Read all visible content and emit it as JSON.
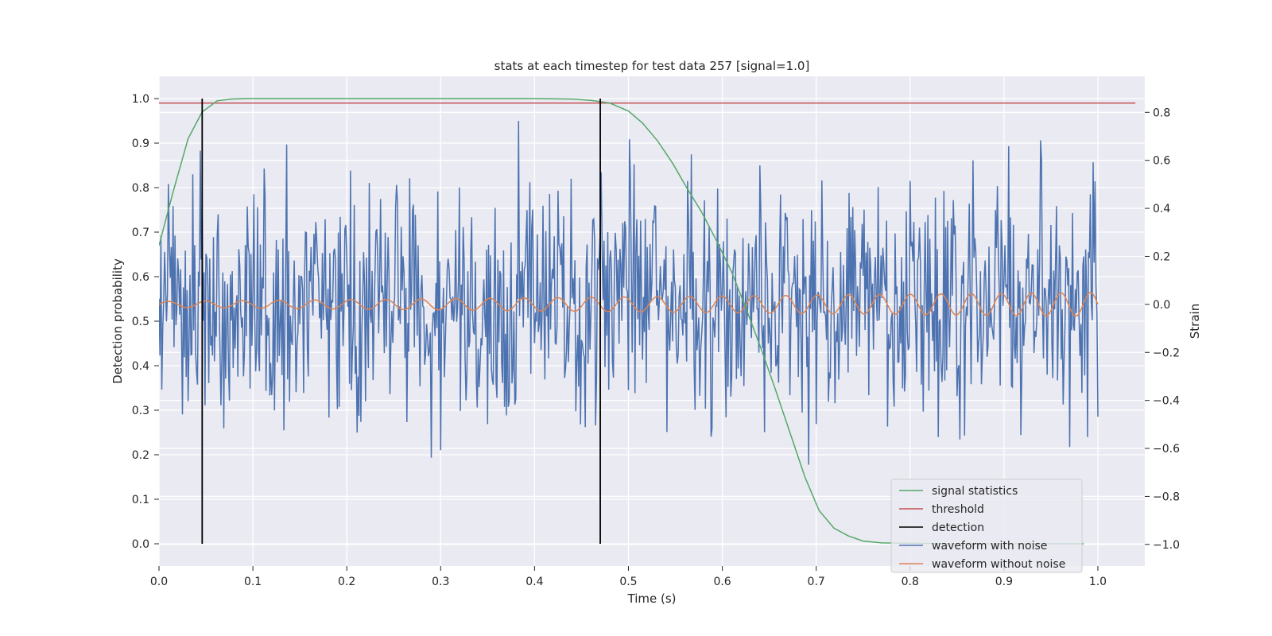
{
  "chart_data": {
    "type": "line",
    "title": "stats at each timestep for test data 257 [signal=1.0]",
    "xlabel": "Time (s)",
    "ylabel_left": "Detection probability",
    "ylabel_right": "Strain",
    "xlim": [
      0.0,
      1.05
    ],
    "ylim_left": [
      -0.05,
      1.05
    ],
    "ylim_right": [
      -1.09,
      0.95
    ],
    "x_ticks": [
      "0.0",
      "0.1",
      "0.2",
      "0.3",
      "0.4",
      "0.5",
      "0.6",
      "0.7",
      "0.8",
      "0.9",
      "1.0"
    ],
    "y_left_ticks": [
      "0.0",
      "0.1",
      "0.2",
      "0.3",
      "0.4",
      "0.5",
      "0.6",
      "0.7",
      "0.8",
      "0.9",
      "1.0"
    ],
    "y_right_ticks": [
      "−1.0",
      "−0.8",
      "−0.6",
      "−0.4",
      "−0.2",
      "0.0",
      "0.2",
      "0.4",
      "0.6",
      "0.8"
    ],
    "grid": true,
    "legend_position": "lower-right",
    "threshold": 0.99,
    "detections": [
      0.046,
      0.47
    ],
    "signal_statistics": {
      "name": "signal statistics",
      "color": "#55a868",
      "x": [
        0.0,
        0.015,
        0.031,
        0.046,
        0.062,
        0.077,
        0.093,
        0.11,
        0.2,
        0.3,
        0.4,
        0.44,
        0.46,
        0.48,
        0.5,
        0.515,
        0.531,
        0.547,
        0.562,
        0.578,
        0.594,
        0.61,
        0.625,
        0.641,
        0.656,
        0.672,
        0.688,
        0.703,
        0.719,
        0.734,
        0.75,
        0.77,
        0.8,
        0.85,
        0.9,
        0.95,
        0.985
      ],
      "y": [
        0.67,
        0.79,
        0.91,
        0.97,
        0.995,
        0.999,
        1.0,
        1.0,
        1.0,
        1.0,
        1.0,
        0.999,
        0.996,
        0.99,
        0.972,
        0.945,
        0.905,
        0.855,
        0.8,
        0.745,
        0.68,
        0.61,
        0.53,
        0.44,
        0.35,
        0.25,
        0.15,
        0.075,
        0.035,
        0.018,
        0.006,
        0.002,
        0.001,
        0.0,
        0.0,
        0.0,
        0.0
      ]
    },
    "threshold_series": {
      "name": "threshold",
      "color": "#c44e52"
    },
    "detection_series": {
      "name": "detection",
      "color": "#000000"
    },
    "waveform_with_noise": {
      "name": "waveform with noise",
      "color": "#4c72b0",
      "x_range": [
        0.0,
        1.0
      ],
      "approx_std": 0.3
    },
    "waveform_without_noise": {
      "name": "waveform without noise",
      "color": "#dd8452",
      "x_range": [
        0.0,
        1.0
      ],
      "amp_start": 0.012,
      "amp_end": 0.05,
      "cycles": 25
    }
  }
}
